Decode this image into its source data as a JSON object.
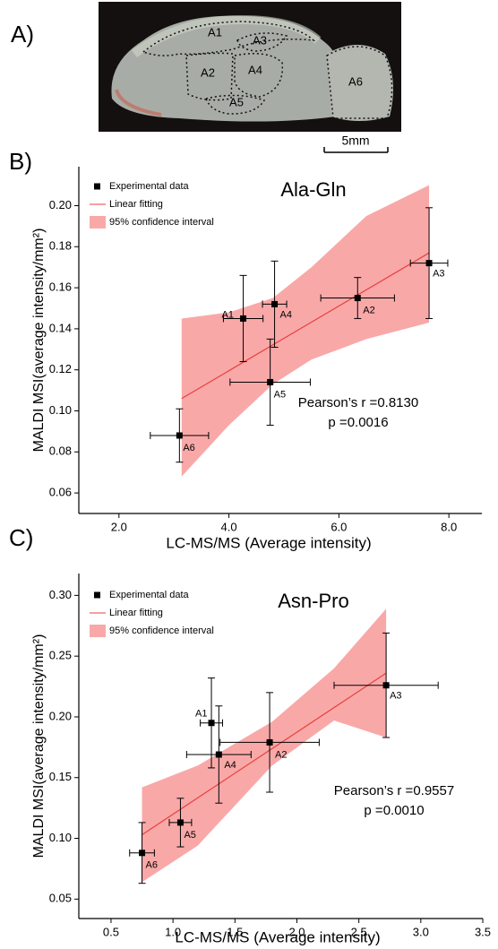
{
  "panel_a": {
    "label": "A)",
    "regions": [
      "A1",
      "A2",
      "A3",
      "A4",
      "A5",
      "A6"
    ],
    "scale_bar": "5mm"
  },
  "chart_data": [
    {
      "type": "scatter",
      "panel_label": "B)",
      "title": "Ala-Gln",
      "xlabel": "LC-MS/MS (Average intensity)",
      "ylabel": "MALDI MSI(average intensity/mm²)",
      "xlim": [
        1.27,
        8.6
      ],
      "ylim": [
        0.05,
        0.219
      ],
      "xticks": [
        {
          "value": 2,
          "label": "2.0"
        },
        {
          "value": 4,
          "label": "4.0"
        },
        {
          "value": 6,
          "label": "6.0"
        },
        {
          "value": 8,
          "label": "8.0"
        }
      ],
      "yticks": [
        {
          "value": 0.06,
          "label": "0.06"
        },
        {
          "value": 0.08,
          "label": "0.08"
        },
        {
          "value": 0.1,
          "label": "0.10"
        },
        {
          "value": 0.12,
          "label": "0.12"
        },
        {
          "value": 0.14,
          "label": "0.14"
        },
        {
          "value": 0.16,
          "label": "0.16"
        },
        {
          "value": 0.18,
          "label": "0.18"
        },
        {
          "value": 0.2,
          "label": "0.20"
        }
      ],
      "grid": false,
      "legend": "upper left",
      "series": [
        {
          "name": "Experimental data",
          "color": "#000000",
          "point_labels": [
            "A1",
            "A2",
            "A3",
            "A4",
            "A5",
            "A6"
          ],
          "x": [
            4.26,
            6.34,
            7.64,
            4.83,
            4.75,
            3.1
          ],
          "values": [
            0.145,
            0.155,
            0.172,
            0.152,
            0.114,
            0.088
          ],
          "xerr": [
            0.36,
            0.67,
            0.34,
            0.22,
            0.73,
            0.53
          ],
          "yerr": [
            0.021,
            0.01,
            0.027,
            0.021,
            0.021,
            0.013
          ]
        },
        {
          "name": "Linear  fitting",
          "color": "#e8413c",
          "x": [
            3.14,
            7.64
          ],
          "values": [
            0.106,
            0.177
          ]
        },
        {
          "name": "95% confidence interval",
          "color": "#f9a8a8",
          "x": [
            3.14,
            4,
            4.8,
            5.5,
            6.5,
            7.64
          ],
          "upper": [
            0.145,
            0.148,
            0.155,
            0.17,
            0.195,
            0.21
          ],
          "lower": [
            0.068,
            0.093,
            0.113,
            0.125,
            0.135,
            0.143
          ]
        }
      ],
      "annotations": [
        "Pearson’s r =0.8130",
        "p =0.0016"
      ]
    },
    {
      "type": "scatter",
      "panel_label": "C)",
      "title": "Asn-Pro",
      "xlabel": "LC-MS/MS (Average intensity)",
      "ylabel": "MALDI MSI(average intensity/mm²)",
      "xlim": [
        0.24,
        3.5
      ],
      "ylim": [
        0.034,
        0.318
      ],
      "xticks": [
        0.5,
        {
          "value": 1,
          "label": "1.0"
        },
        1.5,
        {
          "value": 2,
          "label": "2.0"
        },
        2.5,
        {
          "value": 3,
          "label": "3.0"
        },
        3.5
      ],
      "yticks": [
        {
          "value": 0.05,
          "label": "0.05"
        },
        {
          "value": 0.1,
          "label": "0.10"
        },
        {
          "value": 0.15,
          "label": "0.15"
        },
        {
          "value": 0.2,
          "label": "0.20"
        },
        {
          "value": 0.25,
          "label": "0.25"
        },
        {
          "value": 0.3,
          "label": "0.30"
        }
      ],
      "grid": false,
      "legend": "upper left",
      "series": [
        {
          "name": "Experimental data",
          "color": "#000000",
          "point_labels": [
            "A1",
            "A2",
            "A3",
            "A4",
            "A5",
            "A6"
          ],
          "x": [
            1.31,
            1.78,
            2.72,
            1.37,
            1.06,
            0.75
          ],
          "values": [
            0.195,
            0.179,
            0.226,
            0.169,
            0.113,
            0.088
          ],
          "xerr": [
            0.09,
            0.4,
            0.42,
            0.26,
            0.09,
            0.1
          ],
          "yerr": [
            0.037,
            0.041,
            0.043,
            0.04,
            0.02,
            0.025
          ]
        },
        {
          "name": "Linear  fitting",
          "color": "#e8413c",
          "x": [
            0.75,
            2.72
          ],
          "values": [
            0.103,
            0.236
          ]
        },
        {
          "name": "95% confidence interval",
          "color": "#f9a8a8",
          "x": [
            0.75,
            1.2,
            1.8,
            2.3,
            2.72
          ],
          "upper": [
            0.142,
            0.16,
            0.196,
            0.24,
            0.289
          ],
          "lower": [
            0.064,
            0.094,
            0.16,
            0.197,
            0.183
          ]
        }
      ],
      "annotations": [
        "Pearson’s r =0.9557",
        "p =0.0010"
      ]
    }
  ]
}
